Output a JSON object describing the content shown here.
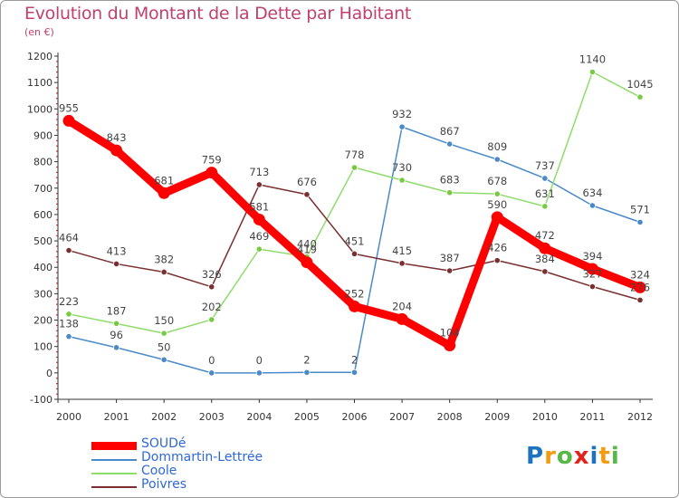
{
  "chart_data": {
    "type": "line",
    "title": "Evolution du Montant de la Dette par Habitant",
    "subtitle": "(en €)",
    "x": [
      "2000",
      "2001",
      "2002",
      "2003",
      "2004",
      "2005",
      "2006",
      "2007",
      "2008",
      "2009",
      "2010",
      "2011",
      "2012"
    ],
    "ylim": [
      -100,
      1200
    ],
    "yticks": [
      -100,
      0,
      100,
      200,
      300,
      400,
      500,
      600,
      700,
      800,
      900,
      1000,
      1100,
      1200
    ],
    "grid": false,
    "legend_position": "bottom-left",
    "series": [
      {
        "name": "SOUDé",
        "color": "#ff0000",
        "values": [
          955,
          843,
          681,
          759,
          581,
          419,
          252,
          204,
          104,
          590,
          472,
          394,
          324
        ]
      },
      {
        "name": "Dommartin-Lettrée",
        "color": "#4a8ac9",
        "marker": "#4a8ac9",
        "values": [
          138,
          96,
          50,
          0,
          0,
          2,
          2,
          932,
          867,
          809,
          737,
          634,
          571
        ]
      },
      {
        "name": "Coole",
        "color": "#8fdc6c",
        "marker": "#7ac943",
        "values": [
          223,
          187,
          150,
          202,
          469,
          440,
          778,
          730,
          683,
          678,
          631,
          1140,
          1045
        ]
      },
      {
        "name": "Poivres",
        "color": "#7a3030",
        "marker": "#7a3030",
        "values": [
          464,
          413,
          382,
          326,
          713,
          676,
          451,
          415,
          387,
          426,
          384,
          327,
          276
        ]
      }
    ]
  },
  "brand": {
    "letters": [
      "P",
      "r",
      "o",
      "x",
      "i",
      "t",
      "i"
    ],
    "colors": [
      "#1e73be",
      "#f39c12",
      "#56b947",
      "#e2231a",
      "#1e73be",
      "#f39c12",
      "#56b947"
    ]
  }
}
